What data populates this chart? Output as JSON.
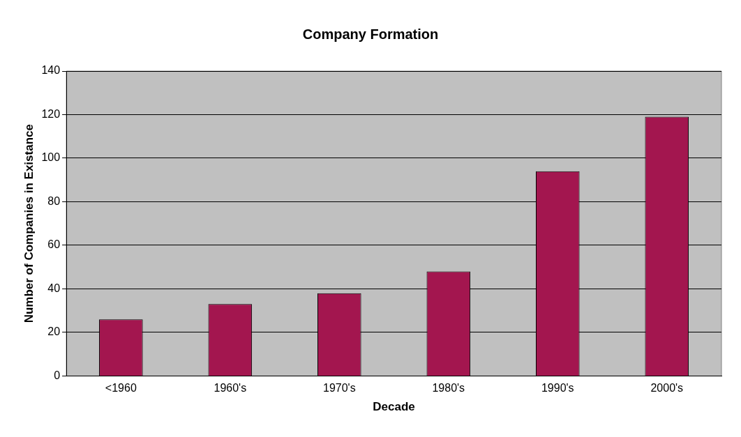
{
  "chart_data": {
    "type": "bar",
    "title": "Company Formation",
    "xlabel": "Decade",
    "ylabel": "Number of Companies in Existance",
    "categories": [
      "<1960",
      "1960's",
      "1970's",
      "1980's",
      "1990's",
      "2000's"
    ],
    "values": [
      26,
      33,
      38,
      48,
      94,
      119
    ],
    "color": "#a3164f",
    "ylim": [
      0,
      140
    ],
    "yticks": [
      0,
      20,
      40,
      60,
      80,
      100,
      120,
      140
    ],
    "grid": "y",
    "legend": false
  }
}
